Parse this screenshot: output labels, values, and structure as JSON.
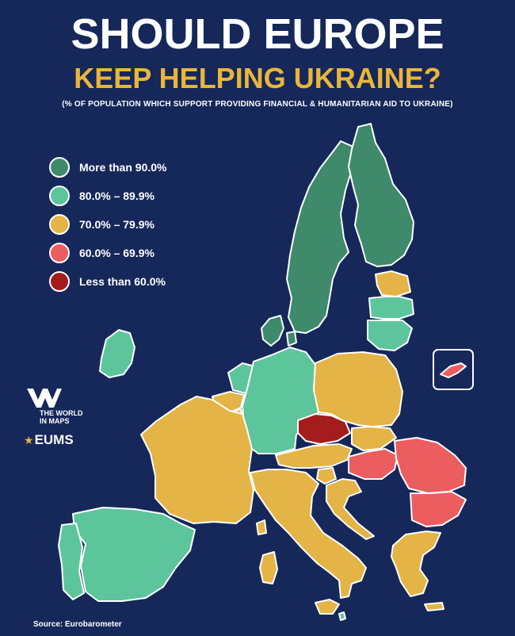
{
  "header": {
    "title_line1": "SHOULD EUROPE",
    "title_line2": "KEEP HELPING UKRAINE?",
    "subtitle": "(% OF POPULATION WHICH SUPPORT PROVIDING FINANCIAL & HUMANITARIAN AID TO UKRAINE)"
  },
  "legend": [
    {
      "label": "More than 90.0%",
      "color": "#3e8a6a"
    },
    {
      "label": "80.0% – 89.9%",
      "color": "#5cc59c"
    },
    {
      "label": "70.0% – 79.9%",
      "color": "#e4b446"
    },
    {
      "label": "60.0% – 69.9%",
      "color": "#ec5d5f"
    },
    {
      "label": "Less than 60.0%",
      "color": "#a51c1c"
    }
  ],
  "branding": {
    "logo_text": "THE WORLD IN MAPS",
    "partner": "EUMS"
  },
  "footer": {
    "source": "Source: Eurobarometer"
  },
  "map": {
    "background": "#16285a",
    "border_color": "#ffffff",
    "countries": [
      {
        "name": "Sweden",
        "category": "More than 90.0%"
      },
      {
        "name": "Finland",
        "category": "More than 90.0%"
      },
      {
        "name": "Denmark",
        "category": "More than 90.0%"
      },
      {
        "name": "Estonia",
        "category": "70.0% – 79.9%"
      },
      {
        "name": "Latvia",
        "category": "80.0% – 89.9%"
      },
      {
        "name": "Lithuania",
        "category": "80.0% – 89.9%"
      },
      {
        "name": "Ireland",
        "category": "80.0% – 89.9%"
      },
      {
        "name": "Netherlands",
        "category": "80.0% – 89.9%"
      },
      {
        "name": "Belgium",
        "category": "70.0% – 79.9%"
      },
      {
        "name": "Luxembourg",
        "category": "70.0% – 79.9%"
      },
      {
        "name": "Germany",
        "category": "80.0% – 89.9%"
      },
      {
        "name": "Poland",
        "category": "70.0% – 79.9%"
      },
      {
        "name": "Czechia",
        "category": "Less than 60.0%"
      },
      {
        "name": "Slovakia",
        "category": "70.0% – 79.9%"
      },
      {
        "name": "Austria",
        "category": "70.0% – 79.9%"
      },
      {
        "name": "Hungary",
        "category": "60.0% – 69.9%"
      },
      {
        "name": "Romania",
        "category": "60.0% – 69.9%"
      },
      {
        "name": "Bulgaria",
        "category": "60.0% – 69.9%"
      },
      {
        "name": "Slovenia",
        "category": "70.0% – 79.9%"
      },
      {
        "name": "Croatia",
        "category": "70.0% – 79.9%"
      },
      {
        "name": "France",
        "category": "70.0% – 79.9%"
      },
      {
        "name": "Spain",
        "category": "80.0% – 89.9%"
      },
      {
        "name": "Portugal",
        "category": "80.0% – 89.9%"
      },
      {
        "name": "Italy",
        "category": "70.0% – 79.9%"
      },
      {
        "name": "Greece",
        "category": "70.0% – 79.9%"
      },
      {
        "name": "Malta",
        "category": "80.0% – 89.9%"
      },
      {
        "name": "Cyprus",
        "category": "60.0% – 69.9%"
      }
    ]
  }
}
